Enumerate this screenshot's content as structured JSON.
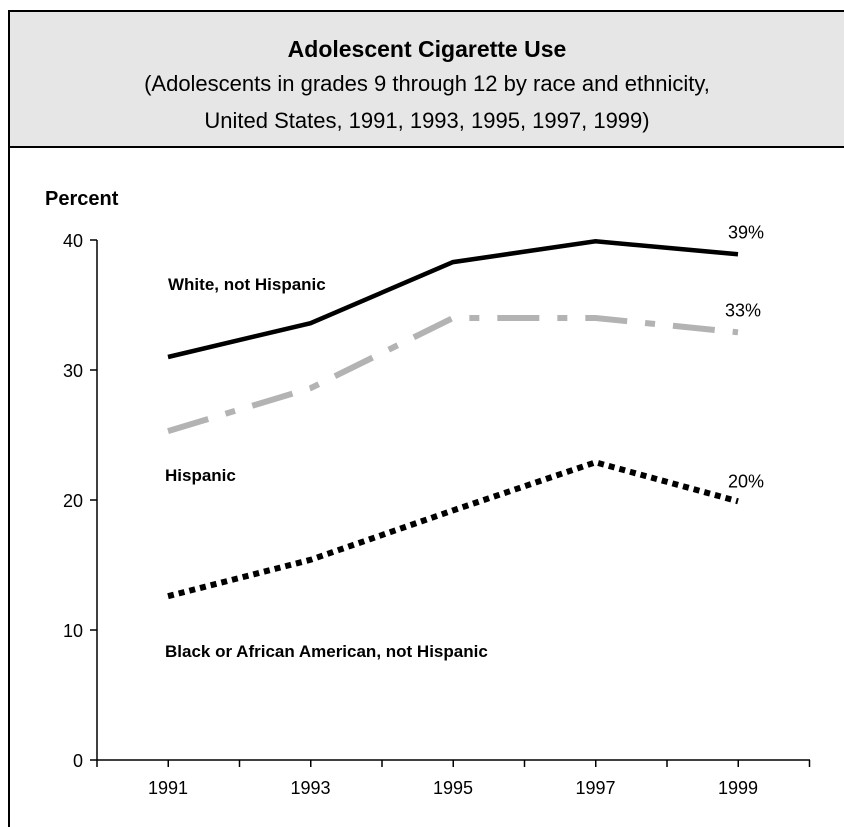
{
  "header": {
    "title": "Adolescent Cigarette Use",
    "subtitle_line1": "(Adolescents in grades 9 through 12 by race and ethnicity,",
    "subtitle_line2": "United States, 1991, 1993, 1995, 1997, 1999)"
  },
  "chart_data": {
    "type": "line",
    "title": "Adolescent Cigarette Use",
    "subtitle": "(Adolescents in grades 9 through 12 by race and ethnicity, United States, 1991, 1993, 1995, 1997, 1999)",
    "ylabel": "Percent",
    "xlabel": "",
    "x": [
      "1991",
      "1993",
      "1995",
      "1997",
      "1999"
    ],
    "ylim": [
      0,
      40
    ],
    "yticks": [
      0,
      10,
      20,
      30,
      40
    ],
    "grid": false,
    "series": [
      {
        "name": "White, not Hispanic",
        "values": [
          31.0,
          33.6,
          38.3,
          39.9,
          38.9
        ],
        "end_label": "39%",
        "color": "#000000",
        "style": "solid"
      },
      {
        "name": "Hispanic",
        "values": [
          25.3,
          28.6,
          34.0,
          34.0,
          32.9
        ],
        "end_label": "33%",
        "color": "#b3b3b3",
        "style": "dash-dot"
      },
      {
        "name": "Black or African American, not Hispanic",
        "values": [
          12.6,
          15.4,
          19.2,
          22.9,
          19.9
        ],
        "end_label": "20%",
        "color": "#000000",
        "style": "dotted"
      }
    ]
  }
}
